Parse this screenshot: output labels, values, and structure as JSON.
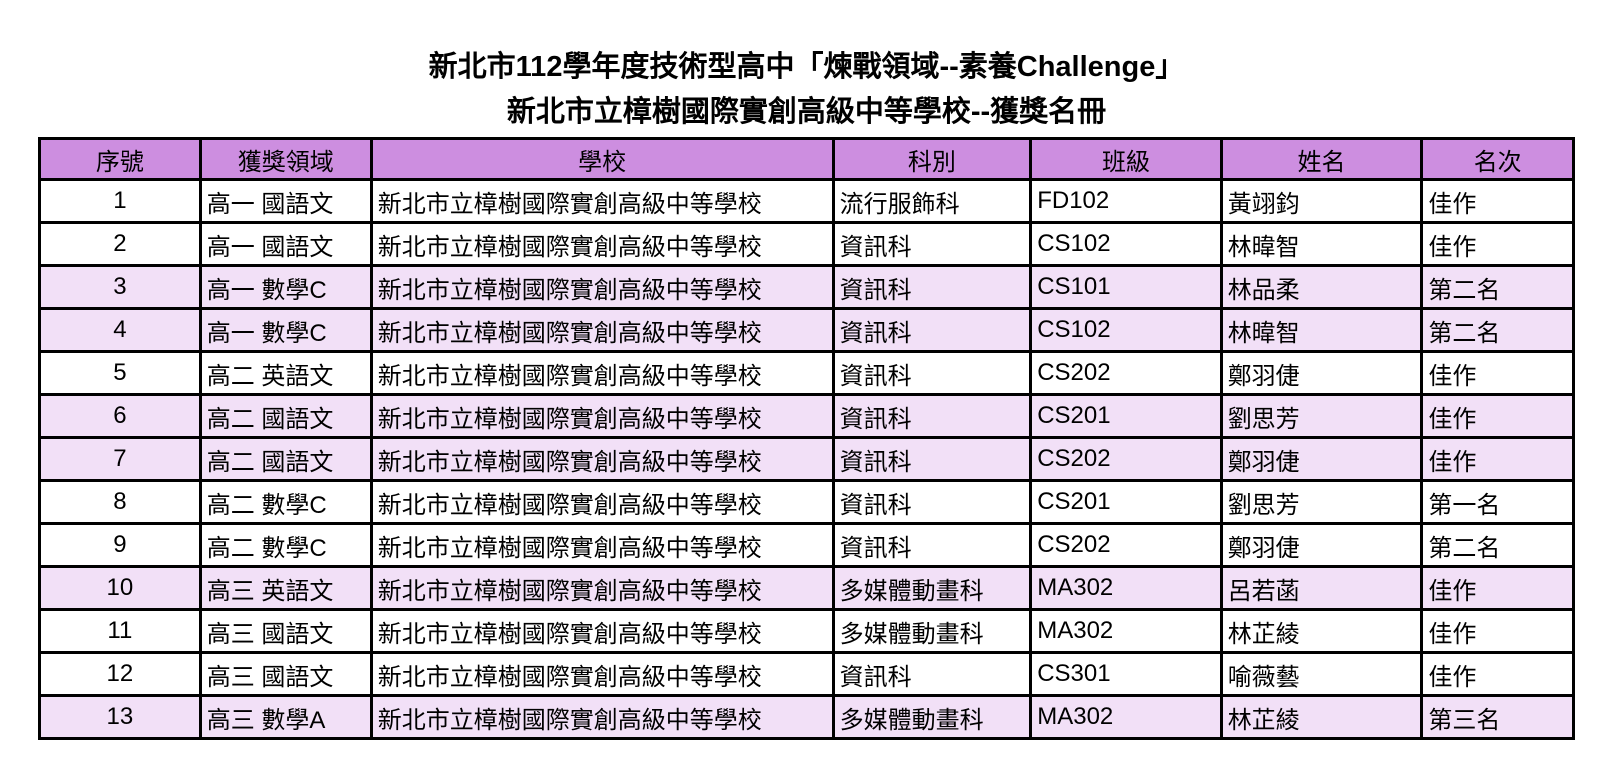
{
  "page": {
    "title_line1": "新北市112學年度技術型高中「煉戰領域--素養Challenge」",
    "title_line2": "新北市立樟樹國際實創高級中等學校--獲獎名冊"
  },
  "colors": {
    "header_bg": "#cd8ee0",
    "alt_row_bg": "#f2e0f7",
    "row_bg": "#ffffff",
    "border": "#000000"
  },
  "table": {
    "columns": [
      {
        "key": "no",
        "label": "序號"
      },
      {
        "key": "field",
        "label": "獲獎領域"
      },
      {
        "key": "school",
        "label": "學校"
      },
      {
        "key": "dept",
        "label": "科別"
      },
      {
        "key": "class",
        "label": "班級"
      },
      {
        "key": "name",
        "label": "姓名"
      },
      {
        "key": "rank",
        "label": "名次"
      }
    ],
    "rows": [
      {
        "no": "1",
        "field": "高一 國語文",
        "school": "新北市立樟樹國際實創高級中等學校",
        "dept": "流行服飾科",
        "class": "FD102",
        "name": "黃翊鈞",
        "rank": "佳作",
        "highlight": false
      },
      {
        "no": "2",
        "field": "高一 國語文",
        "school": "新北市立樟樹國際實創高級中等學校",
        "dept": "資訊科",
        "class": "CS102",
        "name": "林暐智",
        "rank": "佳作",
        "highlight": false
      },
      {
        "no": "3",
        "field": "高一 數學C",
        "school": "新北市立樟樹國際實創高級中等學校",
        "dept": "資訊科",
        "class": "CS101",
        "name": "林品柔",
        "rank": "第二名",
        "highlight": true
      },
      {
        "no": "4",
        "field": "高一 數學C",
        "school": "新北市立樟樹國際實創高級中等學校",
        "dept": "資訊科",
        "class": "CS102",
        "name": "林暐智",
        "rank": "第二名",
        "highlight": true
      },
      {
        "no": "5",
        "field": "高二 英語文",
        "school": "新北市立樟樹國際實創高級中等學校",
        "dept": "資訊科",
        "class": "CS202",
        "name": "鄭羽倢",
        "rank": "佳作",
        "highlight": false
      },
      {
        "no": "6",
        "field": "高二 國語文",
        "school": "新北市立樟樹國際實創高級中等學校",
        "dept": "資訊科",
        "class": "CS201",
        "name": "劉思芳",
        "rank": "佳作",
        "highlight": true
      },
      {
        "no": "7",
        "field": "高二 國語文",
        "school": "新北市立樟樹國際實創高級中等學校",
        "dept": "資訊科",
        "class": "CS202",
        "name": "鄭羽倢",
        "rank": "佳作",
        "highlight": true
      },
      {
        "no": "8",
        "field": "高二 數學C",
        "school": "新北市立樟樹國際實創高級中等學校",
        "dept": "資訊科",
        "class": "CS201",
        "name": "劉思芳",
        "rank": "第一名",
        "highlight": false
      },
      {
        "no": "9",
        "field": "高二 數學C",
        "school": "新北市立樟樹國際實創高級中等學校",
        "dept": "資訊科",
        "class": "CS202",
        "name": "鄭羽倢",
        "rank": "第二名",
        "highlight": false
      },
      {
        "no": "10",
        "field": "高三 英語文",
        "school": "新北市立樟樹國際實創高級中等學校",
        "dept": "多媒體動畫科",
        "class": "MA302",
        "name": "呂若菡",
        "rank": "佳作",
        "highlight": true
      },
      {
        "no": "11",
        "field": "高三 國語文",
        "school": "新北市立樟樹國際實創高級中等學校",
        "dept": "多媒體動畫科",
        "class": "MA302",
        "name": "林芷綾",
        "rank": "佳作",
        "highlight": false
      },
      {
        "no": "12",
        "field": "高三 國語文",
        "school": "新北市立樟樹國際實創高級中等學校",
        "dept": "資訊科",
        "class": "CS301",
        "name": "喻薇藝",
        "rank": "佳作",
        "highlight": false
      },
      {
        "no": "13",
        "field": "高三 數學A",
        "school": "新北市立樟樹國際實創高級中等學校",
        "dept": "多媒體動畫科",
        "class": "MA302",
        "name": "林芷綾",
        "rank": "第三名",
        "highlight": true
      }
    ]
  }
}
